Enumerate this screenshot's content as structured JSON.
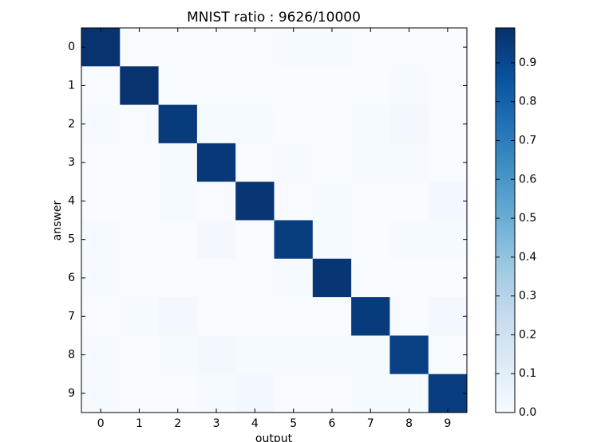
{
  "chart_data": {
    "type": "heatmap",
    "title": "MNIST  ratio : 9626/10000",
    "xlabel": "output",
    "ylabel": "answer",
    "x_categories": [
      0,
      1,
      2,
      3,
      4,
      5,
      6,
      7,
      8,
      9
    ],
    "y_categories": [
      0,
      1,
      2,
      3,
      4,
      5,
      6,
      7,
      8,
      9
    ],
    "values": [
      [
        0.98,
        0.0,
        0.0,
        0.0,
        0.0,
        0.01,
        0.01,
        0.0,
        0.0,
        0.0
      ],
      [
        0.0,
        0.98,
        0.0,
        0.0,
        0.0,
        0.0,
        0.0,
        0.0,
        0.01,
        0.0
      ],
      [
        0.01,
        0.0,
        0.95,
        0.01,
        0.01,
        0.0,
        0.0,
        0.01,
        0.02,
        0.0
      ],
      [
        0.0,
        0.0,
        0.01,
        0.96,
        0.0,
        0.01,
        0.0,
        0.01,
        0.01,
        0.0
      ],
      [
        0.0,
        0.0,
        0.01,
        0.0,
        0.97,
        0.0,
        0.01,
        0.0,
        0.0,
        0.02
      ],
      [
        0.01,
        0.0,
        0.0,
        0.02,
        0.0,
        0.94,
        0.01,
        0.0,
        0.01,
        0.01
      ],
      [
        0.01,
        0.0,
        0.0,
        0.0,
        0.0,
        0.01,
        0.97,
        0.0,
        0.0,
        0.0
      ],
      [
        0.0,
        0.01,
        0.02,
        0.0,
        0.0,
        0.0,
        0.0,
        0.95,
        0.0,
        0.02
      ],
      [
        0.01,
        0.0,
        0.01,
        0.02,
        0.01,
        0.01,
        0.01,
        0.01,
        0.93,
        0.0
      ],
      [
        0.01,
        0.0,
        0.0,
        0.01,
        0.02,
        0.0,
        0.0,
        0.01,
        0.01,
        0.94
      ]
    ],
    "colormap": "Blues",
    "clim": [
      0,
      0.99
    ],
    "cticks": [
      {
        "value": 0,
        "label": "0.0"
      },
      0.1,
      0.2,
      0.3,
      0.4,
      0.5,
      0.6,
      0.7,
      0.8,
      0.9
    ]
  }
}
